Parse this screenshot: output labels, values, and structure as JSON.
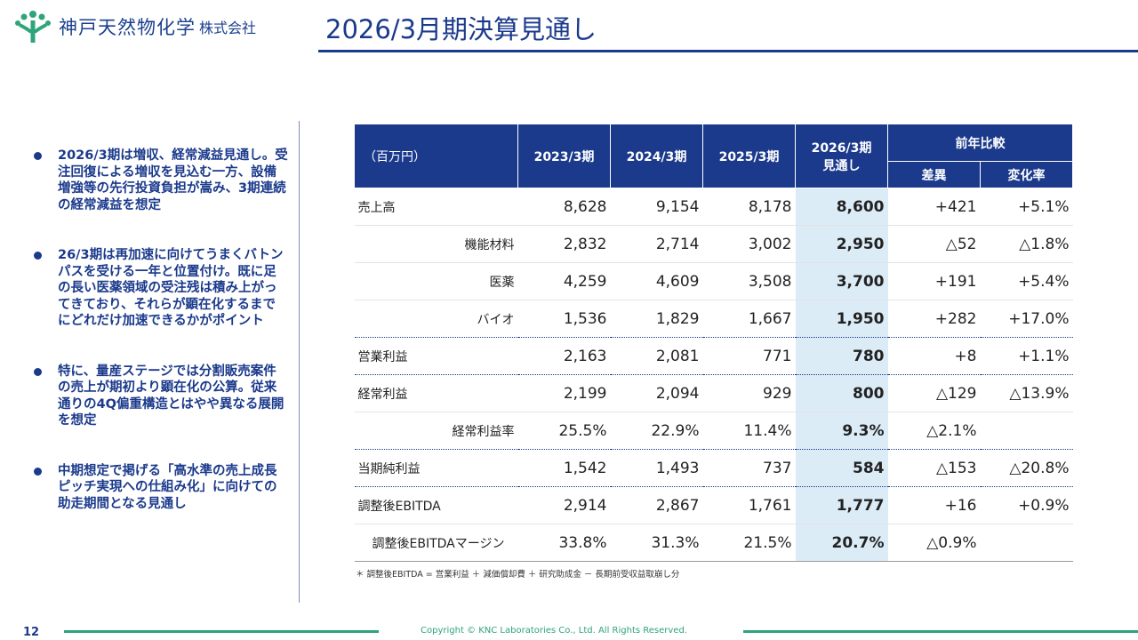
{
  "header": {
    "company": "神戸天然物化学",
    "company_suffix": "株式会社",
    "title": "2026/3月期決算見通し"
  },
  "bullets": [
    "2026/3期は増収、経常減益見通し。受注回復による増収を見込む一方、設備増強等の先行投資負担が嵩み、3期連続の経常減益を想定",
    "26/3期は再加速に向けてうまくバトンパスを受ける一年と位置付け。既に足の長い医薬領域の受注残は積み上がってきており、それらが顕在化するまでにどれだけ加速できるかがポイント",
    "特に、量産ステージでは分割販売案件の売上が期初より顕在化の公算。従来通りの4Q偏重構造とはやや異なる展開を想定",
    "中期想定で掲げる「高水準の売上成長ピッチ実現への仕組み化」に向けての助走期間となる見通し"
  ],
  "table": {
    "unit": "（百万円）",
    "cols": [
      "2023/3期",
      "2024/3期",
      "2025/3期"
    ],
    "forecast_1": "2026/3期",
    "forecast_2": "見通し",
    "yoy": "前年比較",
    "diff": "差異",
    "rate": "変化率",
    "rows": [
      {
        "label": "売上高",
        "v": [
          "8,628",
          "9,154",
          "8,178",
          "8,600",
          "+421",
          "+5.1%"
        ]
      },
      {
        "label": "機能材料",
        "v": [
          "2,832",
          "2,714",
          "3,002",
          "2,950",
          "△52",
          "△1.8%"
        ]
      },
      {
        "label": "医薬",
        "v": [
          "4,259",
          "4,609",
          "3,508",
          "3,700",
          "+191",
          "+5.4%"
        ]
      },
      {
        "label": "バイオ",
        "v": [
          "1,536",
          "1,829",
          "1,667",
          "1,950",
          "+282",
          "+17.0%"
        ]
      },
      {
        "label": "営業利益",
        "v": [
          "2,163",
          "2,081",
          "771",
          "780",
          "+8",
          "+1.1%"
        ]
      },
      {
        "label": "経常利益",
        "v": [
          "2,199",
          "2,094",
          "929",
          "800",
          "△129",
          "△13.9%"
        ]
      },
      {
        "label": "経常利益率",
        "v": [
          "25.5%",
          "22.9%",
          "11.4%",
          "9.3%",
          "△2.1%",
          ""
        ]
      },
      {
        "label": "当期純利益",
        "v": [
          "1,542",
          "1,493",
          "737",
          "584",
          "△153",
          "△20.8%"
        ]
      },
      {
        "label": "調整後EBITDA",
        "v": [
          "2,914",
          "2,867",
          "1,761",
          "1,777",
          "+16",
          "+0.9%"
        ]
      },
      {
        "label": "調整後EBITDAマージン",
        "v": [
          "33.8%",
          "31.3%",
          "21.5%",
          "20.7%",
          "△0.9%",
          ""
        ]
      }
    ]
  },
  "footnote": "＊ 調整後EBITDA = 営業利益 ＋ 減価償却費 ＋ 研究助成金 － 長期前受収益取崩し分",
  "footer": {
    "page": "12",
    "copyright": "Copyright © KNC Laboratories Co., Ltd. All Rights Reserved."
  },
  "colors": {
    "navy": "#1b3a8c",
    "green": "#2ea47a",
    "forecast_bg": "#dcecf7"
  }
}
